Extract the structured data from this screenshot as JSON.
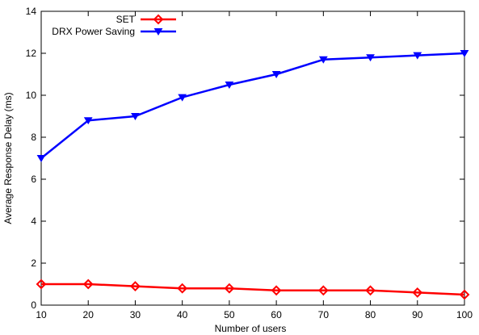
{
  "chart_data": {
    "type": "line",
    "title": "",
    "xlabel": "Number of users",
    "ylabel": "Average Response Delay (ms)",
    "x": [
      10,
      20,
      30,
      40,
      50,
      60,
      70,
      80,
      90,
      100
    ],
    "xlim": [
      10,
      100
    ],
    "ylim": [
      0,
      14
    ],
    "x_ticks": [
      10,
      20,
      30,
      40,
      50,
      60,
      70,
      80,
      90,
      100
    ],
    "y_ticks": [
      0,
      2,
      4,
      6,
      8,
      10,
      12,
      14
    ],
    "grid": false,
    "legend_position": "top-left",
    "series": [
      {
        "name": "SET",
        "color": "#ff0000",
        "marker": "diamond",
        "values": [
          1.0,
          1.0,
          0.9,
          0.8,
          0.8,
          0.7,
          0.7,
          0.7,
          0.6,
          0.5
        ]
      },
      {
        "name": "DRX Power Saving",
        "color": "#0000ff",
        "marker": "triangle-down",
        "values": [
          7.0,
          8.8,
          9.0,
          9.9,
          10.5,
          11.0,
          11.7,
          11.8,
          11.9,
          12.0
        ]
      }
    ]
  }
}
